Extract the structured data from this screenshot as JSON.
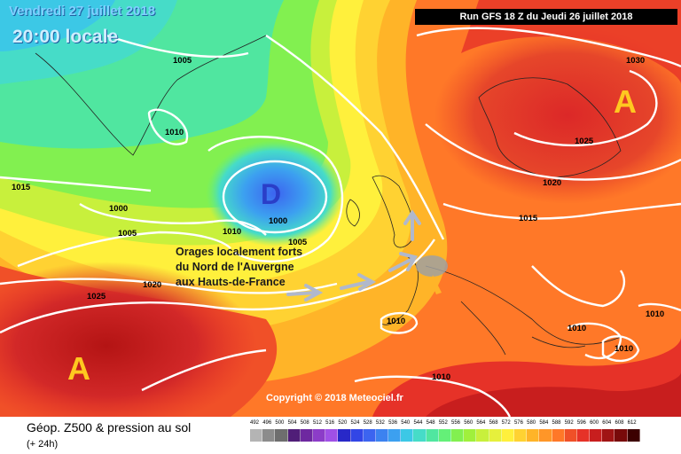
{
  "header": {
    "date": "Vendredi 27 juillet 2018",
    "time": "20:00 locale",
    "run": "Run GFS 18 Z du Jeudi 26 juillet 2018"
  },
  "annotation": {
    "line1": "Orages localement forts",
    "line2": "du Nord de l'Auvergne",
    "line3": "aux Hauts-de-France"
  },
  "pressure_centers": {
    "low": "D",
    "high_atlantic": "A",
    "high_scandinavia": "A"
  },
  "isobar_labels": [
    "1005",
    "1010",
    "1015",
    "1000",
    "1005",
    "1010",
    "1000",
    "1005",
    "1010",
    "1020",
    "1025",
    "1030",
    "1025",
    "1020",
    "1015",
    "1010",
    "1010",
    "1010",
    "1010",
    "1010"
  ],
  "copyright": "Copyright © 2018 Meteociel.fr",
  "footer": {
    "title": "Géop. Z500 & pression au sol",
    "subtitle": "(+ 24h)"
  },
  "legend": {
    "values": [
      "492",
      "496",
      "500",
      "504",
      "508",
      "512",
      "516",
      "520",
      "524",
      "528",
      "532",
      "536",
      "540",
      "544",
      "548",
      "552",
      "556",
      "560",
      "564",
      "568",
      "572",
      "576",
      "580",
      "584",
      "588",
      "592",
      "596",
      "600",
      "604",
      "608",
      "612"
    ],
    "colors": [
      "#b4b4b4",
      "#8c8c8c",
      "#6e6e6e",
      "#501e78",
      "#6e28a0",
      "#8c3cc8",
      "#a050e6",
      "#2828c8",
      "#3246e6",
      "#3c64f0",
      "#3c82f0",
      "#3ca0f0",
      "#3cc8e6",
      "#46dcc8",
      "#50e6a0",
      "#64f078",
      "#82f050",
      "#a0f03c",
      "#c8f03c",
      "#e6f03c",
      "#fff03c",
      "#ffd232",
      "#ffb428",
      "#ff9628",
      "#ff7828",
      "#f05028",
      "#e63228",
      "#c81e1e",
      "#a01414",
      "#780a0a",
      "#3c0000"
    ]
  },
  "colors": {
    "isobar": "#ffffff",
    "letter_A": "#ffc820",
    "letter_D": "#2a3ec8",
    "arrow": "#b0b8cc"
  }
}
